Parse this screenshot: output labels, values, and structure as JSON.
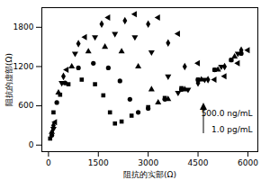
{
  "chart_data": {
    "type": "scatter",
    "x_label": "阻抗的实部(Ω)",
    "y_label": "阻抗的虚部(Ω)",
    "xlim": [
      -200,
      6300
    ],
    "xticks": [
      0,
      1500,
      3000,
      4500,
      6000
    ],
    "ylim": [
      -100,
      2100
    ],
    "yticks": [
      0,
      600,
      1200,
      1800
    ],
    "color": "#000000",
    "annotations": [
      {
        "text": "500.0 ng/mL"
      },
      {
        "text": "1.0 pg/mL"
      }
    ],
    "series": [
      {
        "marker": "square",
        "x": [
          50,
          150,
          350,
          600,
          1000,
          1400,
          1650,
          1850,
          2000,
          2200,
          2500,
          3000,
          3500,
          4000,
          4500,
          5000,
          5500
        ],
        "values": [
          100,
          500,
          770,
          930,
          1000,
          930,
          760,
          500,
          330,
          360,
          450,
          580,
          720,
          870,
          1000,
          1150,
          1300
        ]
      },
      {
        "marker": "circle",
        "x": [
          100,
          250,
          500,
          900,
          1350,
          1800,
          2150,
          2450,
          2700,
          3000,
          3500,
          4000,
          4500,
          5000,
          5500,
          5800
        ],
        "values": [
          150,
          650,
          950,
          1180,
          1250,
          1180,
          980,
          700,
          500,
          560,
          700,
          850,
          1000,
          1150,
          1300,
          1400
        ]
      },
      {
        "marker": "triangle",
        "x": [
          100,
          300,
          700,
          1200,
          1700,
          2200,
          2700,
          3100,
          3300,
          3600,
          4100,
          4600,
          5100,
          5600
        ],
        "values": [
          200,
          800,
          1200,
          1430,
          1500,
          1430,
          1200,
          850,
          650,
          700,
          850,
          1000,
          1150,
          1350
        ]
      },
      {
        "marker": "triangle-down",
        "x": [
          150,
          400,
          800,
          1400,
          2000,
          2600,
          3100,
          3600,
          3900,
          4200,
          4700,
          5200,
          5700
        ],
        "values": [
          250,
          950,
          1400,
          1650,
          1700,
          1650,
          1420,
          1050,
          800,
          850,
          1000,
          1200,
          1400
        ]
      },
      {
        "marker": "diamond",
        "x": [
          150,
          450,
          900,
          1600,
          2300,
          3000,
          3600,
          4100,
          4500,
          4800,
          5300,
          5800
        ],
        "values": [
          300,
          1050,
          1550,
          1850,
          1900,
          1850,
          1560,
          1200,
          950,
          1000,
          1200,
          1450
        ]
      },
      {
        "marker": "triangle-left",
        "x": [
          200,
          550,
          1100,
          1800,
          2600,
          3300,
          3900,
          4500,
          5000,
          5300,
          5700,
          6000
        ],
        "values": [
          350,
          1150,
          1650,
          1950,
          2000,
          1950,
          1700,
          1250,
          1000,
          1050,
          1250,
          1450
        ]
      }
    ]
  }
}
